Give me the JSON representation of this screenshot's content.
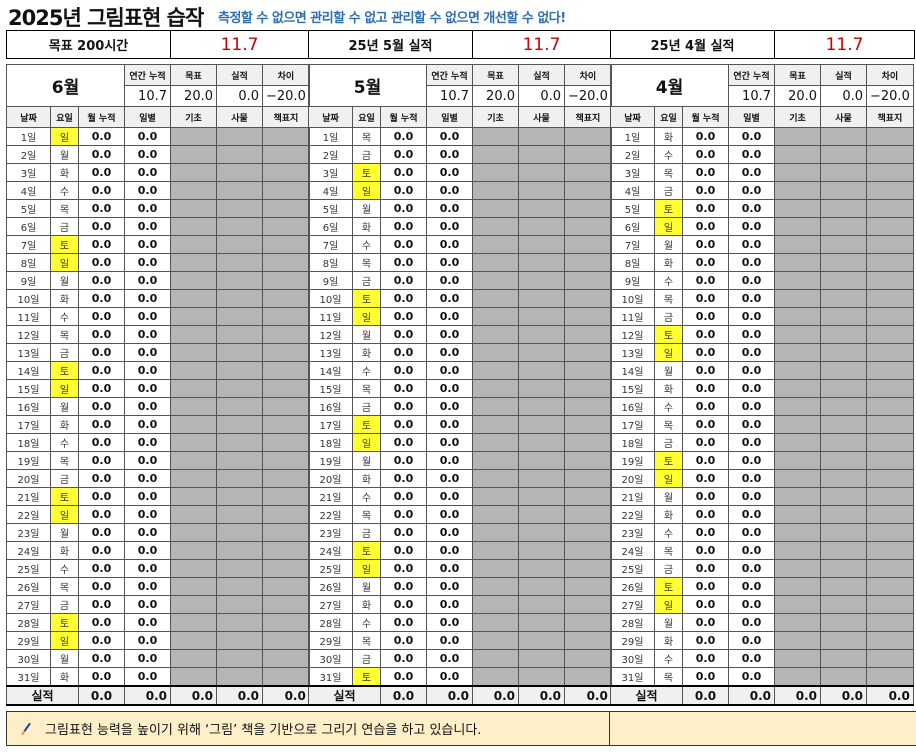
{
  "title": "2025년 그림표현 습작",
  "slogan": "측정할 수 없으면 관리할 수 없고 관리할 수 없으면 개선할 수 없다!",
  "summary": [
    {
      "label": "목표 200시간",
      "value": "11.7"
    },
    {
      "label": "25년 5월 실적",
      "value": "11.7"
    },
    {
      "label": "25년 4월 실적",
      "value": "11.7"
    }
  ],
  "headers": {
    "annual": "연간 누적",
    "goal": "목표",
    "actual": "실적",
    "diff": "차이",
    "date": "날짜",
    "weekday": "요일",
    "monthly": "월 누적",
    "daily": "일별",
    "basic": "기초",
    "object": "사물",
    "cover": "책표지",
    "total": "실적"
  },
  "colors": {
    "weekend": "#ffff33",
    "value": "#cc0000",
    "slogan": "#2e6fb0",
    "note_bg": "#fdf0c8",
    "blank_cell": "#b5b5b5"
  },
  "months": [
    {
      "name": "6월",
      "annual": "10.7",
      "goal": "20.0",
      "actual": "0.0",
      "diff": "−20.0",
      "totals": [
        "0.0",
        "0.0",
        "0.0",
        "0.0",
        "0.0"
      ],
      "weekdays": [
        "일",
        "월",
        "화",
        "수",
        "목",
        "금",
        "토",
        "일",
        "월",
        "화",
        "수",
        "목",
        "금",
        "토",
        "일",
        "월",
        "화",
        "수",
        "목",
        "금",
        "토",
        "일",
        "월",
        "화",
        "수",
        "목",
        "금",
        "토",
        "일",
        "월",
        "화"
      ]
    },
    {
      "name": "5월",
      "annual": "10.7",
      "goal": "20.0",
      "actual": "0.0",
      "diff": "−20.0",
      "totals": [
        "0.0",
        "0.0",
        "0.0",
        "0.0",
        "0.0"
      ],
      "weekdays": [
        "목",
        "금",
        "토",
        "일",
        "월",
        "화",
        "수",
        "목",
        "금",
        "토",
        "일",
        "월",
        "화",
        "수",
        "목",
        "금",
        "토",
        "일",
        "월",
        "화",
        "수",
        "목",
        "금",
        "토",
        "일",
        "월",
        "화",
        "수",
        "목",
        "금",
        "토"
      ]
    },
    {
      "name": "4월",
      "annual": "10.7",
      "goal": "20.0",
      "actual": "0.0",
      "diff": "−20.0",
      "totals": [
        "0.0",
        "0.0",
        "0.0",
        "0.0",
        "0.0"
      ],
      "weekdays": [
        "화",
        "수",
        "목",
        "금",
        "토",
        "일",
        "월",
        "화",
        "수",
        "목",
        "금",
        "토",
        "일",
        "월",
        "화",
        "수",
        "목",
        "금",
        "토",
        "일",
        "월",
        "화",
        "수",
        "목",
        "금",
        "토",
        "일",
        "월",
        "화",
        "수",
        "목"
      ]
    }
  ],
  "days": [
    "1일",
    "2일",
    "3일",
    "4일",
    "5일",
    "6일",
    "7일",
    "8일",
    "9일",
    "10일",
    "11일",
    "12일",
    "13일",
    "14일",
    "15일",
    "16일",
    "17일",
    "18일",
    "19일",
    "20일",
    "21일",
    "22일",
    "23일",
    "24일",
    "25일",
    "26일",
    "27일",
    "28일",
    "29일",
    "30일",
    "31일"
  ],
  "zero": "0.0",
  "note": {
    "icon": "pencil-icon",
    "text": "그림표현 능력을 높이기 위해 ‘그림’ 책을 기반으로 그리기 연습을 하고 있습니다."
  }
}
